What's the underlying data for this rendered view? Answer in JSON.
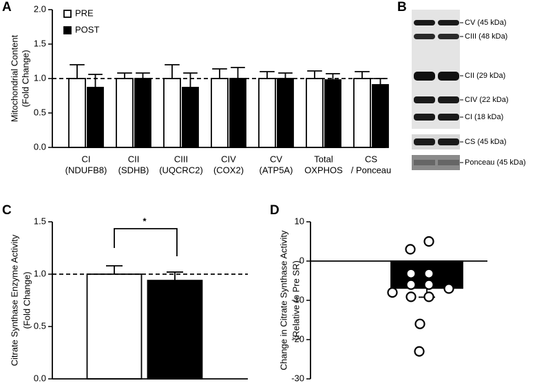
{
  "chart_data": [
    {
      "panel": "A",
      "type": "bar",
      "ylabel": [
        "Mitochondrial Content",
        "(Fold Change)"
      ],
      "categories": [
        [
          "CI",
          "(NDUFB8)"
        ],
        [
          "CII",
          "(SDHB)"
        ],
        [
          "CIII",
          "(UQCRC2)"
        ],
        [
          "CIV",
          "(COX2)"
        ],
        [
          "CV",
          "(ATP5A)"
        ],
        [
          "Total",
          "OXPHOS"
        ],
        [
          "CS",
          "/ Ponceau"
        ]
      ],
      "series": [
        {
          "name": "PRE",
          "color": "#ffffff",
          "values": [
            1.0,
            1.0,
            1.0,
            1.0,
            1.0,
            1.0,
            1.0
          ],
          "errors": [
            0.2,
            0.08,
            0.2,
            0.14,
            0.1,
            0.11,
            0.1
          ]
        },
        {
          "name": "POST",
          "color": "#000000",
          "values": [
            0.87,
            1.0,
            0.87,
            1.0,
            1.0,
            0.98,
            0.91
          ],
          "errors": [
            0.19,
            0.08,
            0.21,
            0.16,
            0.08,
            0.09,
            0.09
          ]
        }
      ],
      "ylim": [
        0,
        2
      ],
      "yticks": [
        {
          "value": 0,
          "label": "0.0"
        },
        {
          "value": 0.5,
          "label": "0.5"
        },
        {
          "value": 1,
          "label": "1.0"
        },
        {
          "value": 1.5,
          "label": "1.5"
        },
        {
          "value": 2,
          "label": "2.0"
        }
      ],
      "reference_line": 1,
      "legend": "upper left"
    },
    {
      "panel": "C",
      "type": "bar",
      "ylabel": [
        "Citrate Synthase Enzyme Activity",
        "(Fold Change)"
      ],
      "values": [
        1.0,
        0.94
      ],
      "errors": [
        0.08,
        0.08
      ],
      "colors": [
        "#ffffff",
        "#000000"
      ],
      "ylim": [
        0,
        1.5
      ],
      "yticks": [
        {
          "value": 0,
          "label": "0.0"
        },
        {
          "value": 0.5,
          "label": "0.5"
        },
        {
          "value": 1,
          "label": "1.0"
        },
        {
          "value": 1.5,
          "label": "1.5"
        }
      ],
      "reference_line": 1,
      "annotation": "*"
    },
    {
      "panel": "D",
      "type": "bar",
      "ylabel": [
        "Change in Citrate Synthase Activity",
        "(Relative to Pre SR)"
      ],
      "values": [
        -6.9
      ],
      "errors": [
        2.3
      ],
      "colors": [
        "#000000"
      ],
      "points": [
        3,
        5,
        -3.2,
        -3.2,
        -6,
        -6,
        -8,
        -9.1,
        -9.1,
        -7,
        -16,
        -23
      ],
      "ylim": [
        -30,
        10
      ],
      "yticks": [
        -30,
        -20,
        -10,
        0,
        10
      ]
    }
  ],
  "blot": {
    "panel": "B",
    "labels": [
      "CV (45 kDa)",
      "CIII (48 kDa)",
      "CII (29 kDa)",
      "CIV (22 kDa)",
      "CI (18 kDa)",
      "CS (45 kDa)",
      "Ponceau (45 kDa)"
    ]
  }
}
